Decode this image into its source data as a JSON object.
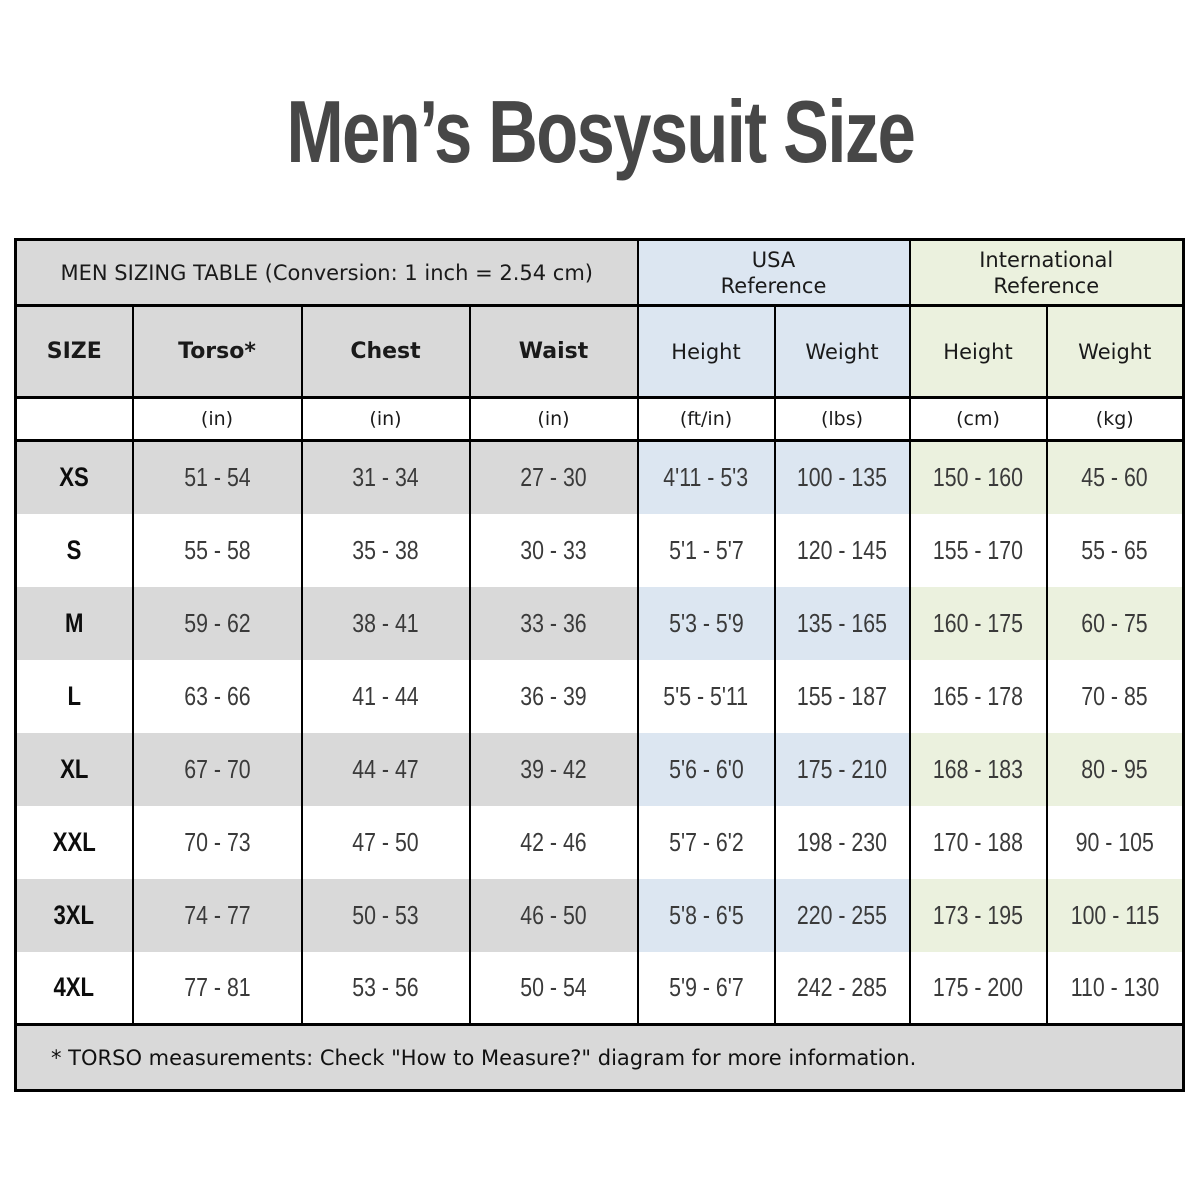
{
  "title": "Men’s Bosysuit Size",
  "colors": {
    "header_gray": "#d9d9d9",
    "usa_blue": "#dce6f1",
    "international_green": "#ebf1de",
    "border_black": "#000000",
    "title_text": "#474747"
  },
  "table": {
    "caption": "MEN SIZING TABLE (Conversion: 1 inch = 2.54 cm)",
    "group_headers": {
      "usa": "USA\nReference",
      "international": "International\nReference"
    },
    "columns": [
      {
        "label": "SIZE",
        "unit": ""
      },
      {
        "label": "Torso*",
        "unit": "(in)"
      },
      {
        "label": "Chest",
        "unit": "(in)"
      },
      {
        "label": "Waist",
        "unit": "(in)"
      },
      {
        "label": "Height",
        "unit": "(ft/in)"
      },
      {
        "label": "Weight",
        "unit": "(lbs)"
      },
      {
        "label": "Height",
        "unit": "(cm)"
      },
      {
        "label": "Weight",
        "unit": "(kg)"
      }
    ],
    "rows": [
      {
        "size": "XS",
        "shaded": true,
        "cells": [
          "51 - 54",
          "31 - 34",
          "27 - 30",
          "4'11 - 5'3",
          "100 - 135",
          "150 - 160",
          "45 - 60"
        ]
      },
      {
        "size": "S",
        "shaded": false,
        "cells": [
          "55 - 58",
          "35 - 38",
          "30 - 33",
          "5'1 - 5'7",
          "120 - 145",
          "155 - 170",
          "55 - 65"
        ]
      },
      {
        "size": "M",
        "shaded": true,
        "cells": [
          "59 - 62",
          "38 - 41",
          "33 - 36",
          "5'3 - 5'9",
          "135 - 165",
          "160 - 175",
          "60 - 75"
        ]
      },
      {
        "size": "L",
        "shaded": false,
        "cells": [
          "63 - 66",
          "41 - 44",
          "36 - 39",
          "5'5 - 5'11",
          "155 - 187",
          "165 - 178",
          "70 - 85"
        ]
      },
      {
        "size": "XL",
        "shaded": true,
        "cells": [
          "67 - 70",
          "44 - 47",
          "39 - 42",
          "5'6 - 6'0",
          "175 - 210",
          "168 - 183",
          "80 - 95"
        ]
      },
      {
        "size": "XXL",
        "shaded": false,
        "cells": [
          "70 - 73",
          "47 - 50",
          "42 - 46",
          "5'7 - 6'2",
          "198 - 230",
          "170 - 188",
          "90 - 105"
        ]
      },
      {
        "size": "3XL",
        "shaded": true,
        "cells": [
          "74 - 77",
          "50 - 53",
          "46 - 50",
          "5'8 - 6'5",
          "220 - 255",
          "173 - 195",
          "100 - 115"
        ]
      },
      {
        "size": "4XL",
        "shaded": false,
        "cells": [
          "77 - 81",
          "53 - 56",
          "50 - 54",
          "5'9 - 6'7",
          "242 - 285",
          "175 - 200",
          "110 - 130"
        ]
      }
    ],
    "footnote": "* TORSO measurements: Check \"How to Measure?\" diagram for more information."
  }
}
